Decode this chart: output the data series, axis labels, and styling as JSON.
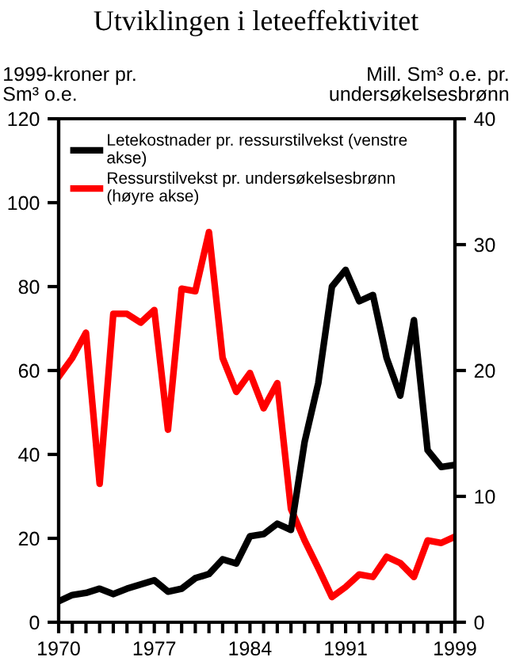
{
  "chart_data": {
    "type": "line",
    "title": "Utviklingen i leteeffektivitet",
    "ylabel": "1999-kroner pr.\nSm³ o.e.",
    "y2label": "Mill. Sm³ o.e. pr.\nundersøkelsesbrønn",
    "x": [
      1970,
      1971,
      1972,
      1973,
      1974,
      1975,
      1976,
      1977,
      1978,
      1979,
      1980,
      1981,
      1982,
      1983,
      1984,
      1985,
      1986,
      1987,
      1988,
      1989,
      1990,
      1991,
      1992,
      1993,
      1994,
      1995,
      1996,
      1997,
      1998,
      1999
    ],
    "series": [
      {
        "name": "Letekostnader pr. ressurstilvekst (venstre\nakse)",
        "color": "#000000",
        "values": [
          5,
          6.5,
          7,
          8,
          6.7,
          8,
          9,
          10,
          7.3,
          8,
          10.5,
          11.5,
          15,
          14,
          20.5,
          21,
          23.5,
          22,
          43,
          57,
          80,
          84,
          76.5,
          78,
          63,
          54,
          72,
          41,
          37,
          37.5
        ]
      },
      {
        "name": "Ressurstilvekst pr. undersøkelsesbrønn\n(høyre akse)",
        "color": "#ff0000",
        "axis": "y2",
        "values": [
          19.5,
          21,
          23,
          11,
          24.5,
          24.5,
          23.8,
          24.8,
          15.3,
          26.5,
          26.3,
          31,
          21,
          18.3,
          19.8,
          17,
          19,
          9,
          6.5,
          4.3,
          2,
          2.8,
          3.8,
          3.6,
          5.2,
          4.7,
          3.6,
          6.5,
          6.3,
          6.8
        ]
      }
    ],
    "xlim": [
      1970,
      1999
    ],
    "xticks": [
      1970,
      {
        "value": 1971,
        "label": null
      },
      {
        "value": 1972,
        "label": null
      },
      {
        "value": 1973,
        "label": null
      },
      {
        "value": 1974,
        "label": null
      },
      {
        "value": 1975,
        "label": null
      },
      {
        "value": 1976,
        "label": null
      },
      1977,
      {
        "value": 1978,
        "label": null
      },
      {
        "value": 1979,
        "label": null
      },
      {
        "value": 1980,
        "label": null
      },
      {
        "value": 1981,
        "label": null
      },
      {
        "value": 1982,
        "label": null
      },
      {
        "value": 1983,
        "label": null
      },
      1984,
      {
        "value": 1985,
        "label": null
      },
      {
        "value": 1986,
        "label": null
      },
      {
        "value": 1987,
        "label": null
      },
      {
        "value": 1988,
        "label": null
      },
      {
        "value": 1989,
        "label": null
      },
      {
        "value": 1990,
        "label": null
      },
      1991,
      {
        "value": 1992,
        "label": null
      },
      {
        "value": 1993,
        "label": null
      },
      {
        "value": 1994,
        "label": null
      },
      {
        "value": 1995,
        "label": null
      },
      {
        "value": 1996,
        "label": null
      },
      {
        "value": 1997,
        "label": null
      },
      {
        "value": 1998,
        "label": null
      },
      1999
    ],
    "ylim": [
      0,
      120
    ],
    "yticks": [
      0,
      20,
      40,
      60,
      80,
      100,
      120
    ],
    "y2lim": [
      0,
      40
    ],
    "y2ticks": [
      0,
      10,
      20,
      30,
      40
    ],
    "legend": "top left",
    "grid": false,
    "marker": "none",
    "line_style": "solid"
  }
}
